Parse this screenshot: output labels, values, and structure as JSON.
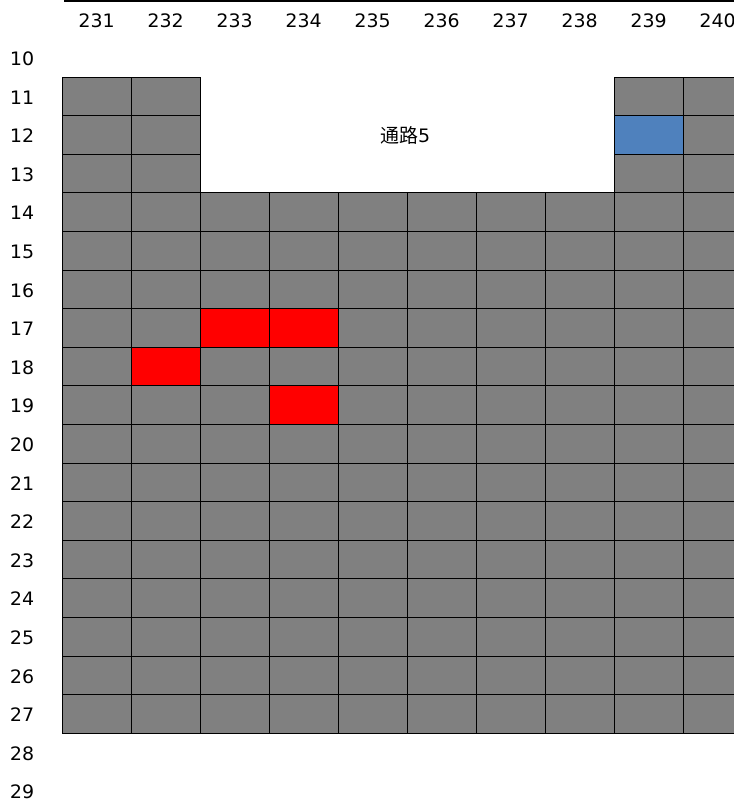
{
  "columns": [
    "231",
    "232",
    "233",
    "234",
    "235",
    "236",
    "237",
    "238",
    "239",
    "240"
  ],
  "rows": [
    "10",
    "11",
    "12",
    "13",
    "14",
    "15",
    "16",
    "17",
    "18",
    "19",
    "20",
    "21",
    "22",
    "23",
    "24",
    "25",
    "26",
    "27",
    "28",
    "29"
  ],
  "aisle_label": "通路5",
  "colors": {
    "default": "#808080",
    "red": "#ff0000",
    "blue": "#4f81bd"
  },
  "highlights": [
    {
      "row": "12",
      "col": "239",
      "color": "blue"
    },
    {
      "row": "17",
      "col": "233",
      "color": "red"
    },
    {
      "row": "17",
      "col": "234",
      "color": "red"
    },
    {
      "row": "18",
      "col": "232",
      "color": "red"
    },
    {
      "row": "19",
      "col": "234",
      "color": "red"
    }
  ],
  "empty_cells": [
    {
      "row": "11",
      "cols": [
        "233",
        "234",
        "235",
        "236",
        "237",
        "238"
      ]
    },
    {
      "row": "12",
      "cols": [
        "233",
        "234",
        "235",
        "236",
        "237",
        "238"
      ]
    },
    {
      "row": "13",
      "cols": [
        "233",
        "234",
        "235",
        "236",
        "237",
        "238"
      ]
    }
  ],
  "filled_rows": [
    "11",
    "12",
    "13",
    "14",
    "15",
    "16",
    "17",
    "18",
    "19",
    "20",
    "21",
    "22",
    "23",
    "24",
    "25",
    "26",
    "27"
  ]
}
